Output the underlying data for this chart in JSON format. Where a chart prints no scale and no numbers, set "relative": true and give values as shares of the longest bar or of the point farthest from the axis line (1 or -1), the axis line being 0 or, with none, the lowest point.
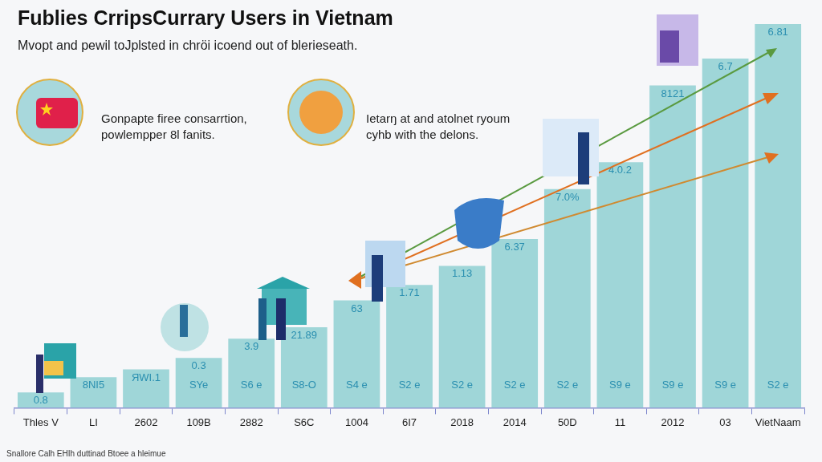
{
  "chart_data": {
    "type": "bar",
    "title": "Fublies CrripsCurrary Users in Vietnam",
    "subtitle": "Mvopt and pewil toJplsted in chröi icoend out of blerieseath.",
    "categories": [
      "Thles V",
      "LI",
      "2602",
      "109B",
      "2882",
      "S6C",
      "1004",
      "6I7",
      "2018",
      "2014",
      "50D",
      "11",
      "2012",
      "03",
      "VietNaam"
    ],
    "values": [
      0.04,
      0.08,
      0.1,
      0.13,
      0.18,
      0.21,
      0.28,
      0.32,
      0.37,
      0.44,
      0.57,
      0.64,
      0.84,
      0.91,
      1
    ],
    "relative": true,
    "color": "#9fd6d8",
    "annotations": [
      "Gonpapte firee consarrtion, powlempper 8l fanits.",
      "Ietarŋ at and atolnet ryoum cyhb with the delons.",
      "Snallore Calh EHIh duttinad Btoee a hleimue",
      {
        "text": "0.8",
        "x": "Thles V",
        "y": 0.04
      },
      {
        "text": "8NI5",
        "x": "LI",
        "y": 0.08
      },
      {
        "text": "ЯWI.1",
        "x": "2602",
        "y": 0.1
      },
      {
        "text": "0.3",
        "x": "109B",
        "y": 0.13
      },
      "SYe",
      {
        "text": "3.9",
        "x": "2882",
        "y": 0.18
      },
      "S6 e",
      {
        "text": "21.89",
        "x": "S6C",
        "y": 0.21
      },
      "S8-O",
      {
        "text": "63",
        "x": "1004",
        "y": 0.28
      },
      "S4 e",
      {
        "text": "1.71",
        "x": "6I7",
        "y": 0.32
      },
      "S2 e",
      {
        "text": "1.13",
        "x": "2018",
        "y": 0.37
      },
      "S2 e",
      {
        "text": "6.37",
        "x": "2014",
        "y": 0.44
      },
      "S2 e",
      {
        "text": "7.0%",
        "x": "50D",
        "y": 0.57
      },
      "S2 e",
      {
        "text": "4.0.2",
        "x": "11",
        "y": 0.64
      },
      "S9 e",
      {
        "text": "8121",
        "x": "2012",
        "y": 0.84
      },
      "S9 e",
      {
        "text": "6.7",
        "x": "03",
        "y": 0.91
      },
      "S9 e",
      {
        "text": "6.81",
        "x": "VietNaam",
        "y": 1
      },
      "S2 e"
    ]
  }
}
